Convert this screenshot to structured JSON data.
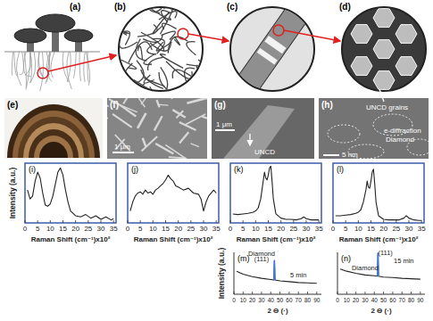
{
  "figure": {
    "panel_labels": [
      "(a)",
      "(b)",
      "(c)",
      "(d)",
      "(e)",
      "(f)",
      "(g)",
      "(h)"
    ],
    "f_scale": "1 μm",
    "g_scale": "1 μm",
    "g_label": "UNCD",
    "h_labels": [
      "UNCD grains",
      "e-diffraction",
      "Diamond"
    ],
    "h_scale": "5 nm"
  },
  "chart_data": [
    {
      "type": "line",
      "title": "(i)",
      "x_label": "Raman Shift (cm⁻¹)x10²",
      "y_label": "Intensity (a.u.)",
      "x": [
        1,
        2,
        3,
        4,
        5,
        6,
        7,
        8,
        9,
        10,
        11,
        12,
        13,
        14,
        15,
        16,
        17,
        18,
        20,
        22,
        24,
        26,
        28,
        30,
        32,
        34,
        35
      ],
      "series": [
        {
          "color": "#222222",
          "values": [
            55,
            40,
            45,
            70,
            85,
            75,
            50,
            30,
            28,
            32,
            45,
            65,
            85,
            92,
            80,
            55,
            35,
            20,
            12,
            10,
            14,
            8,
            12,
            6,
            10,
            5,
            7
          ]
        }
      ],
      "xlim": [
        0,
        36
      ],
      "ylim": [
        0,
        100
      ],
      "xticks": [
        0,
        5,
        10,
        15,
        20,
        25,
        30,
        35
      ],
      "tick_labels": "x",
      "grid": false
    },
    {
      "type": "line",
      "title": "(j)",
      "x_label": "Raman Shift (cm⁻¹)x10²",
      "x": [
        1,
        2,
        3,
        4,
        5,
        6,
        7,
        8,
        9,
        10,
        11,
        12,
        13,
        14,
        15,
        16,
        17,
        18,
        19,
        20,
        22,
        24,
        26,
        28,
        29,
        30,
        31,
        32,
        34,
        35
      ],
      "series": [
        {
          "color": "#222222",
          "values": [
            20,
            35,
            45,
            50,
            52,
            48,
            55,
            50,
            52,
            48,
            55,
            58,
            62,
            66,
            72,
            80,
            74,
            70,
            62,
            60,
            55,
            58,
            50,
            48,
            40,
            20,
            35,
            45,
            55,
            50
          ]
        }
      ],
      "xlim": [
        0,
        36
      ],
      "ylim": [
        0,
        100
      ],
      "xticks": [
        0,
        5,
        10,
        15,
        20,
        25,
        30,
        35
      ],
      "tick_labels": "x",
      "grid": false
    },
    {
      "type": "line",
      "title": "(k)",
      "x_label": "Raman Shift (cm⁻¹)x10²",
      "x": [
        1,
        3,
        5,
        7,
        9,
        10,
        11,
        12,
        13,
        13.5,
        14,
        14.5,
        15,
        15.5,
        16,
        16.5,
        17,
        18,
        20,
        22,
        24,
        26,
        28,
        29,
        30,
        32,
        34,
        35
      ],
      "series": [
        {
          "color": "#222222",
          "values": [
            15,
            14,
            15,
            16,
            18,
            20,
            25,
            40,
            70,
            85,
            75,
            72,
            80,
            92,
            95,
            70,
            40,
            15,
            8,
            6,
            6,
            5,
            7,
            10,
            7,
            5,
            5,
            5
          ]
        }
      ],
      "xlim": [
        0,
        36
      ],
      "ylim": [
        0,
        100
      ],
      "xticks": [
        0,
        5,
        10,
        15,
        20,
        25,
        30,
        35
      ],
      "tick_labels": "x",
      "grid": false
    },
    {
      "type": "line",
      "title": "(l)",
      "x_label": "Raman Shift (cm⁻¹)x10²",
      "x": [
        1,
        3,
        5,
        7,
        9,
        10,
        11,
        12,
        13,
        13.5,
        14,
        14.5,
        15,
        15.5,
        16,
        16.5,
        17,
        18,
        20,
        22,
        24,
        26,
        28,
        29,
        30,
        32,
        34,
        35
      ],
      "series": [
        {
          "color": "#222222",
          "values": [
            12,
            12,
            13,
            14,
            16,
            18,
            22,
            35,
            55,
            70,
            60,
            58,
            70,
            85,
            90,
            65,
            35,
            12,
            6,
            5,
            5,
            5,
            8,
            12,
            8,
            5,
            4,
            4
          ]
        }
      ],
      "xlim": [
        0,
        36
      ],
      "ylim": [
        0,
        100
      ],
      "xticks": [
        0,
        5,
        10,
        15,
        20,
        25,
        30,
        35
      ],
      "tick_labels": "x",
      "grid": false
    },
    {
      "type": "line",
      "title": "(m)",
      "x_label": "2 Θ (·)",
      "y_label": "Intensity (a.u.)",
      "x": [
        3,
        10,
        20,
        30,
        40,
        43.5,
        44,
        44.5,
        50,
        60,
        70,
        80,
        90
      ],
      "series": [
        {
          "color": "#222222",
          "values": [
            55,
            48,
            42,
            38,
            35,
            34,
            80,
            34,
            32,
            30,
            28,
            27,
            26
          ]
        },
        {
          "color": "#3a7bd5",
          "values": [
            null,
            null,
            null,
            null,
            null,
            34,
            80,
            34,
            null,
            null,
            null,
            null,
            null
          ]
        }
      ],
      "annotations": [
        {
          "text": "Diamond",
          "x": 30,
          "y": 92
        },
        {
          "text": "(111)",
          "x": 30,
          "y": 78
        },
        {
          "text": "5 min",
          "x": 70,
          "y": 40
        }
      ],
      "xlim": [
        0,
        95
      ],
      "ylim": [
        0,
        100
      ],
      "xticks": [
        0,
        10,
        20,
        30,
        40,
        50,
        60,
        70,
        80,
        90
      ],
      "tick_labels": "x",
      "grid": false
    },
    {
      "type": "line",
      "title": "(n)",
      "x_label": "2 Θ (·)",
      "x": [
        3,
        10,
        20,
        30,
        40,
        43.5,
        44,
        44.5,
        50,
        60,
        70,
        80,
        90
      ],
      "series": [
        {
          "color": "#222222",
          "values": [
            60,
            55,
            50,
            46,
            44,
            43,
            98,
            43,
            41,
            40,
            38,
            37,
            36
          ]
        },
        {
          "color": "#3a7bd5",
          "values": [
            null,
            null,
            null,
            null,
            null,
            43,
            98,
            43,
            null,
            null,
            null,
            null,
            null
          ]
        }
      ],
      "annotations": [
        {
          "text": "(111)",
          "x": 52,
          "y": 94
        },
        {
          "text": "Diamond",
          "x": 30,
          "y": 58
        },
        {
          "text": "15 min",
          "x": 72,
          "y": 75
        }
      ],
      "xlim": [
        0,
        95
      ],
      "ylim": [
        0,
        100
      ],
      "xticks": [
        0,
        10,
        20,
        30,
        40,
        50,
        60,
        70,
        80,
        90
      ],
      "tick_labels": "x",
      "grid": false
    }
  ]
}
